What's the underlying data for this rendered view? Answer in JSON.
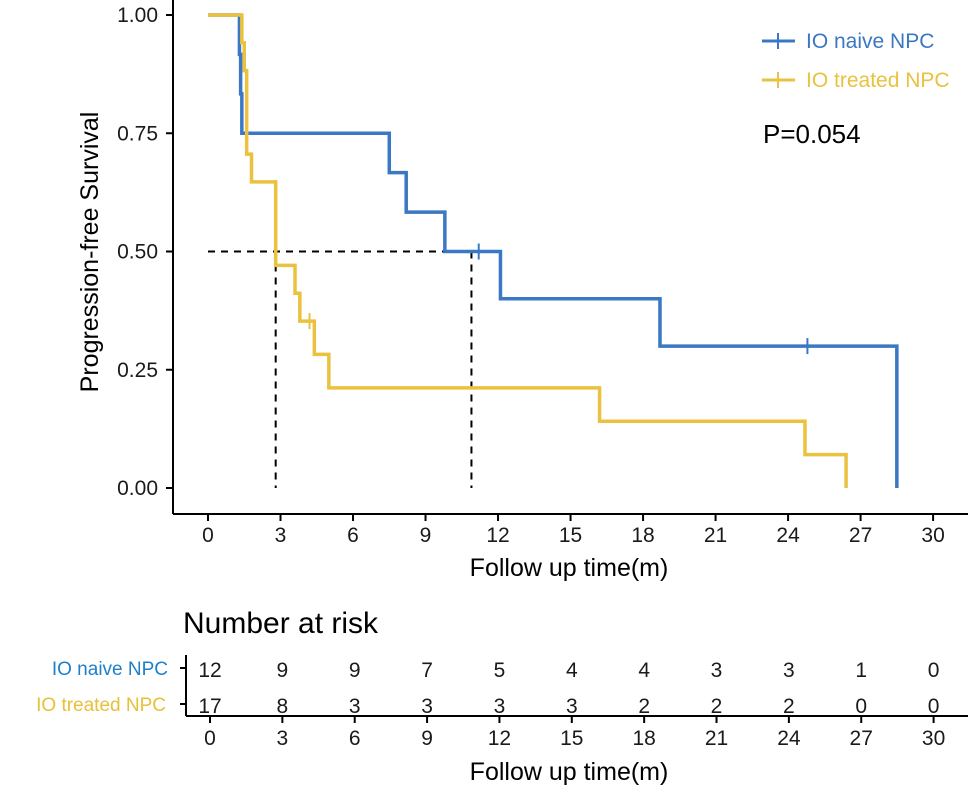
{
  "chart_data": {
    "type": "line",
    "subtype": "kaplan-meier",
    "title": "",
    "xlabel": "Follow up time(m)",
    "ylabel": "Progression-free Survival",
    "xlim": [
      0,
      30
    ],
    "ylim": [
      0,
      1
    ],
    "x_ticks": [
      "0",
      "3",
      "6",
      "9",
      "12",
      "15",
      "18",
      "21",
      "24",
      "27",
      "30"
    ],
    "y_ticks": [
      "0.00",
      "0.25",
      "0.50",
      "0.75",
      "1.00"
    ],
    "grid": false,
    "legend_position": "top-right",
    "annotation": "P=0.054",
    "median_survival": [
      {
        "series": "IO naive NPC",
        "x": 10.9,
        "y": 0.5
      },
      {
        "series": "IO treated NPC",
        "x": 2.8,
        "y": 0.5
      }
    ],
    "series": [
      {
        "name": "IO naive NPC",
        "color": "#3a78c3",
        "steps": [
          [
            0,
            1.0
          ],
          [
            1.3,
            0.9167
          ],
          [
            1.35,
            0.8333
          ],
          [
            1.4,
            0.75
          ],
          [
            7.5,
            0.6667
          ],
          [
            8.2,
            0.5833
          ],
          [
            9.8,
            0.5
          ],
          [
            12.1,
            0.4
          ],
          [
            18.7,
            0.3
          ],
          [
            28.5,
            0.0
          ]
        ],
        "end_x": 28.5,
        "censored": [
          [
            11.2,
            0.5
          ],
          [
            24.8,
            0.3
          ]
        ]
      },
      {
        "name": "IO treated NPC",
        "color": "#eac23f",
        "steps": [
          [
            0,
            1.0
          ],
          [
            1.4,
            0.9412
          ],
          [
            1.5,
            0.8824
          ],
          [
            1.6,
            0.7059
          ],
          [
            1.8,
            0.6471
          ],
          [
            2.8,
            0.4706
          ],
          [
            3.6,
            0.4118
          ],
          [
            3.8,
            0.3529
          ],
          [
            4.4,
            0.2824
          ],
          [
            5.0,
            0.2118
          ],
          [
            16.2,
            0.1412
          ],
          [
            24.7,
            0.0706
          ],
          [
            26.4,
            0.0
          ]
        ],
        "end_x": 26.4,
        "censored": [
          [
            4.2,
            0.3529
          ]
        ]
      }
    ]
  },
  "risk_table": {
    "title": "Number at risk",
    "xlabel": "Follow up time(m)",
    "x_ticks": [
      "0",
      "3",
      "6",
      "9",
      "12",
      "15",
      "18",
      "21",
      "24",
      "27",
      "30"
    ],
    "rows": [
      {
        "label": "IO naive NPC",
        "color": "#1f7fc9",
        "values": [
          "12",
          "9",
          "9",
          "7",
          "5",
          "4",
          "4",
          "3",
          "3",
          "1",
          "0"
        ]
      },
      {
        "label": "IO treated NPC",
        "color": "#e9bf35",
        "values": [
          "17",
          "8",
          "3",
          "3",
          "3",
          "3",
          "2",
          "2",
          "2",
          "0",
          "0"
        ]
      }
    ]
  }
}
